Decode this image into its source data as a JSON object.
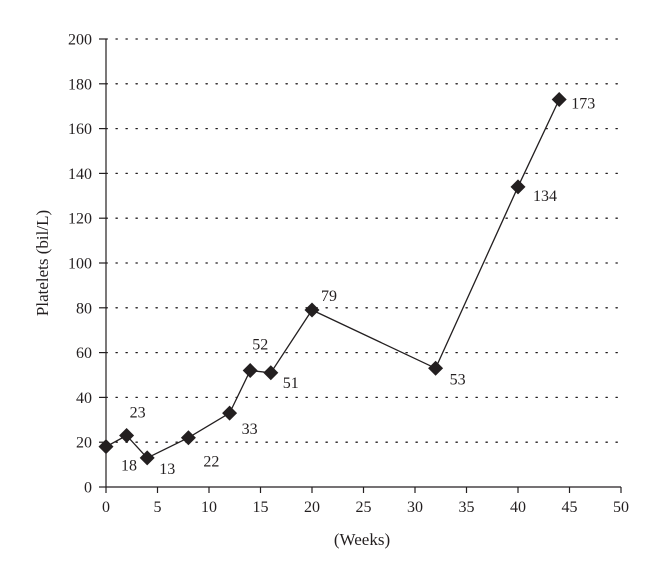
{
  "chart_data": {
    "type": "line",
    "title": "",
    "xlabel": "(Weeks)",
    "ylabel": "Platelets (bil/L)",
    "xlim": [
      0,
      50
    ],
    "ylim": [
      0,
      200
    ],
    "x_ticks": [
      0,
      5,
      10,
      15,
      20,
      25,
      30,
      35,
      40,
      45,
      50
    ],
    "y_ticks": [
      0,
      20,
      40,
      60,
      80,
      100,
      120,
      140,
      160,
      180,
      200
    ],
    "grid": "horizontal-dotted",
    "legend": "none",
    "marker": "diamond",
    "line_color": "#231f20",
    "series": [
      {
        "x": [
          0,
          2,
          4,
          8,
          12,
          14,
          16,
          20,
          32,
          40,
          44
        ],
        "y": [
          18,
          23,
          13,
          22,
          33,
          52,
          51,
          79,
          53,
          134,
          173
        ],
        "labels": [
          "18",
          "23",
          "13",
          "22",
          "33",
          "52",
          "51",
          "79",
          "53",
          "134",
          "173"
        ]
      }
    ]
  }
}
